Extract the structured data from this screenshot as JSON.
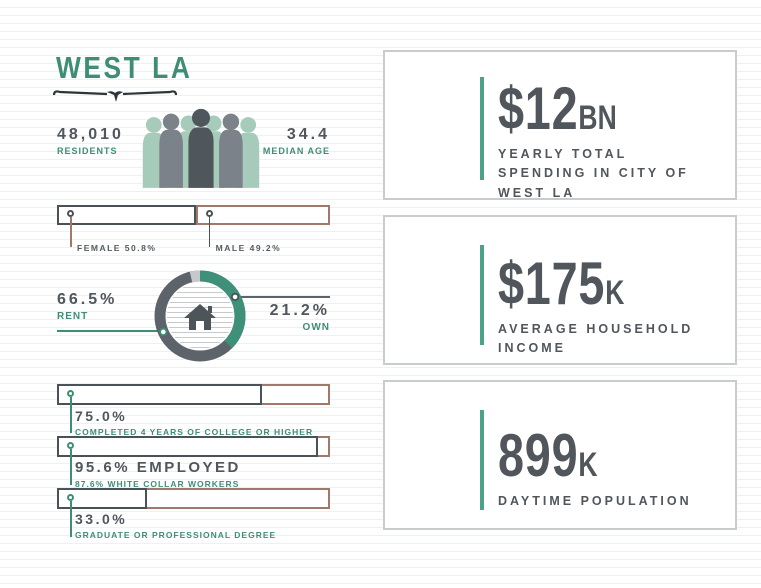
{
  "title": "WEST LA",
  "stats": {
    "residents": {
      "value": "48,010",
      "label": "RESIDENTS"
    },
    "median_age": {
      "value": "34.4",
      "label": "MEDIAN AGE"
    }
  },
  "gender": {
    "female": {
      "label": "FEMALE 50.8%",
      "pct": 50.8
    },
    "male": {
      "label": "MALE 49.2%",
      "pct": 49.2
    }
  },
  "housing": {
    "rent": {
      "value": "66.5%",
      "label": "RENT"
    },
    "own": {
      "value": "21.2%",
      "label": "OWN"
    }
  },
  "bars": [
    {
      "value": "75.0%",
      "label": "COMPLETED 4 YEARS OF COLLEGE OR HIGHER",
      "pct": 75.0
    },
    {
      "value": "95.6% EMPLOYED",
      "label": "87.6% WHITE COLLAR WORKERS",
      "pct": 95.6
    },
    {
      "value": "33.0%",
      "label": "GRADUATE OR PROFESSIONAL DEGREE",
      "pct": 33.0
    }
  ],
  "cards": [
    {
      "value": "$12",
      "suffix": "BN",
      "label": "YEARLY TOTAL SPENDING IN CITY OF WEST LA"
    },
    {
      "value": "$175",
      "suffix": "K",
      "label": "AVERAGE HOUSEHOLD INCOME"
    },
    {
      "value": "899",
      "suffix": "K",
      "label": "DAYTIME POPULATION"
    }
  ],
  "colors": {
    "green": "#3e8e75",
    "dark_text": "#4f565c",
    "brown_outline": "#a3786a",
    "mint_person": "#a6cbba",
    "gray_person": "#7b828a",
    "dark_person": "#4f565c",
    "ring_dark": "#5c636a",
    "ring_light": "#c5c9cb",
    "card_border": "#c9cccf"
  },
  "icons": {
    "people_row": "people-group-icon",
    "house": "house-icon",
    "flourish": "decorative-bracket"
  },
  "chart_data": [
    {
      "type": "pie",
      "title": "Housing tenure (donut with house icon)",
      "labels": [
        "Rent",
        "Own",
        "Other (unlabeled)"
      ],
      "values": [
        66.5,
        21.2,
        12.3
      ],
      "colors": [
        "#5c636a",
        "#3e8e75",
        "#c5c9cb"
      ],
      "legend_position": "callout-lines"
    },
    {
      "type": "bar",
      "title": "Gender split",
      "categories": [
        "Female",
        "Male"
      ],
      "values": [
        50.8,
        49.2
      ],
      "xlabel": "",
      "ylabel": "",
      "xlim": [
        0,
        100
      ]
    },
    {
      "type": "bar",
      "title": "Education & employment",
      "categories": [
        "Completed 4 years of college or higher",
        "Employed",
        "Graduate or professional degree"
      ],
      "values": [
        75.0,
        95.6,
        33.0
      ],
      "annotations": [
        "",
        "87.6% white collar workers",
        ""
      ],
      "xlim": [
        0,
        100
      ]
    }
  ]
}
